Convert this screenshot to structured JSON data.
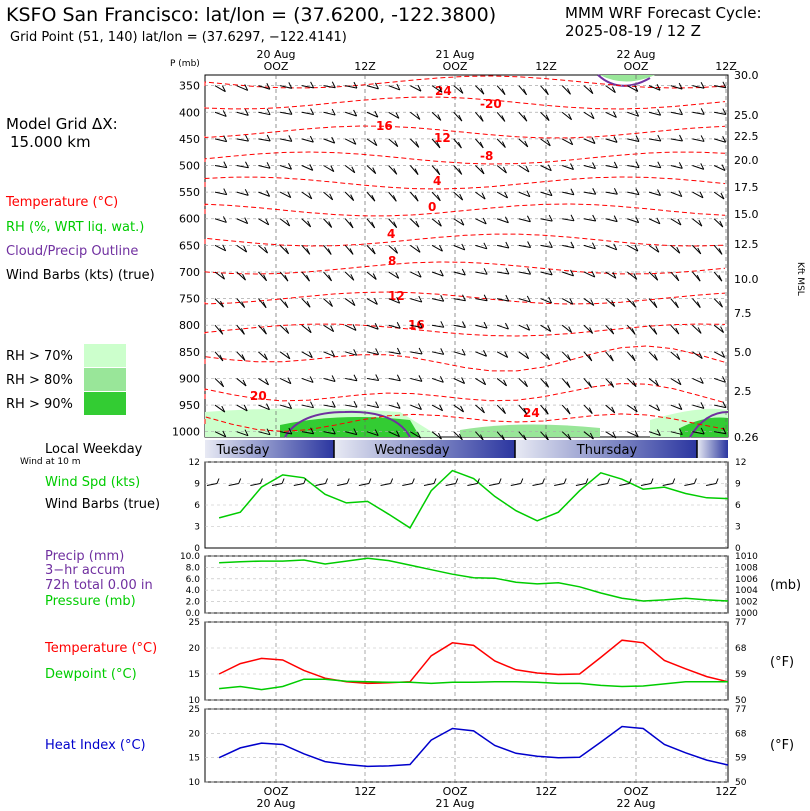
{
  "header": {
    "title": "KSFO San Francisco:  lat/lon = (37.6200, -122.3800)",
    "subtitle": "Grid Point (51, 140) lat/lon = (37.6297, −122.4141)",
    "cycle_line1": "MMM WRF Forecast Cycle:",
    "cycle_line2": "2025-08-19 / 12  Z",
    "grid_label": "Model Grid ΔX:",
    "grid_value": "15.000 km"
  },
  "legend": {
    "temperature": "Temperature (°C)",
    "rh": "RH (%, WRT liq. wat.)",
    "cloud": "Cloud/Precip Outline",
    "wind": "Wind Barbs (kts) (true)",
    "rh70": "RH > 70%",
    "rh80": "RH > 80%",
    "rh90": "RH > 90%"
  },
  "colors": {
    "temperature": "#ff0000",
    "rh": "#00cc00",
    "cloud": "#7030a0",
    "rh70": "#ccffcc",
    "rh80": "#99e699",
    "rh90": "#33cc33",
    "heat_index": "#0000cc",
    "pressure": "#00cc00"
  },
  "time_axis": {
    "top_dates": [
      "20 Aug",
      "21 Aug",
      "22 Aug"
    ],
    "top_times": [
      "OOZ",
      "12Z",
      "OOZ",
      "12Z",
      "OOZ",
      "12Z"
    ],
    "bottom_times": [
      "OOZ",
      "12Z",
      "OOZ",
      "12Z",
      "OOZ",
      "12Z"
    ],
    "bottom_dates": [
      "20 Aug",
      "21 Aug",
      "22 Aug"
    ],
    "weekdays": [
      "Tuesday",
      "Wednesday",
      "Thursday"
    ],
    "local_weekday_label": "Local Weekday",
    "wind_10m_label": "Wind at 10 m"
  },
  "chart_data": [
    {
      "type": "line",
      "title": "",
      "panel": "sounding",
      "ylabel": "P (mb)",
      "y_right_label": "Kft MSL",
      "pressure_ticks": [
        350,
        400,
        450,
        500,
        550,
        600,
        650,
        700,
        750,
        800,
        850,
        900,
        950,
        1000
      ],
      "height_ticks": [
        "30.0",
        "25.0",
        "22.5",
        "20.0",
        "17.5",
        "15.0",
        "12.5",
        "10.0",
        "7.5",
        "5.0",
        "2.5",
        "0.26"
      ],
      "isotherm_labels": [
        "24",
        "-20",
        "16",
        "12",
        "-8",
        "4",
        "0",
        "4",
        "8",
        "12",
        "16",
        "20",
        "24"
      ]
    },
    {
      "type": "line",
      "panel": "wind",
      "legend": [
        "Wind Spd (kts)",
        "Wind Barbs (true)"
      ],
      "y_ticks": [
        3,
        6,
        9,
        12
      ],
      "ylim": [
        0,
        12
      ],
      "x_hours": [
        0,
        3,
        6,
        9,
        12,
        15,
        18,
        21,
        24,
        27,
        30,
        33,
        36,
        39,
        42,
        45,
        48,
        51,
        54,
        57,
        60,
        63,
        66,
        69,
        72
      ],
      "series": [
        {
          "name": "Wind Spd (kts)",
          "values": [
            4.2,
            5,
            8.5,
            10.2,
            9.8,
            7.5,
            6.3,
            6.5,
            4.7,
            2.8,
            8,
            10.8,
            9.7,
            7.2,
            5.2,
            3.8,
            5,
            8,
            10.5,
            9.6,
            8.2,
            8.5,
            7.6,
            7,
            6.9
          ]
        }
      ]
    },
    {
      "type": "line",
      "panel": "precip-pressure",
      "legend": [
        "Precip (mm)",
        "3−hr accum",
        "72h total 0.00 in",
        "Pressure (mb)"
      ],
      "y_left_ticks": [
        "0.0",
        "2.0",
        "4.0",
        "6.0",
        "8.0",
        "10.0"
      ],
      "y_right_ticks": [
        1000,
        1002,
        1004,
        1006,
        1008,
        1010
      ],
      "y_right_unit": "(mb)",
      "ylim_right": [
        1000,
        1010
      ],
      "x_hours": [
        0,
        3,
        6,
        9,
        12,
        15,
        18,
        21,
        24,
        27,
        30,
        33,
        36,
        39,
        42,
        45,
        48,
        51,
        54,
        57,
        60,
        63,
        66,
        69,
        72
      ],
      "series": [
        {
          "name": "Pressure (mb)",
          "values": [
            1008.8,
            1009,
            1009.1,
            1009.1,
            1009.3,
            1008.6,
            1009.1,
            1009.6,
            1009.2,
            1008.4,
            1007.6,
            1006.8,
            1006.2,
            1006.1,
            1005.4,
            1005.1,
            1005.3,
            1004.6,
            1003.5,
            1002.6,
            1002.1,
            1002.3,
            1002.6,
            1002.3,
            1002.1
          ]
        }
      ]
    },
    {
      "type": "line",
      "panel": "temperature",
      "legend": [
        "Temperature (°C)",
        "Dewpoint (°C)"
      ],
      "y_left_ticks": [
        10,
        15,
        20,
        25
      ],
      "y_right_ticks": [
        50,
        59,
        68,
        77
      ],
      "y_right_unit": "(°F)",
      "ylim": [
        10,
        25
      ],
      "x_hours": [
        0,
        3,
        6,
        9,
        12,
        15,
        18,
        21,
        24,
        27,
        30,
        33,
        36,
        39,
        42,
        45,
        48,
        51,
        54,
        57,
        60,
        63,
        66,
        69,
        72
      ],
      "series": [
        {
          "name": "Temperature (°C)",
          "values": [
            15,
            17,
            18,
            17.7,
            15.7,
            14.2,
            13.5,
            13.2,
            13.3,
            13.5,
            18.5,
            21,
            20.5,
            17.5,
            15.8,
            15.2,
            14.9,
            15,
            18.2,
            21.5,
            21,
            17.6,
            16,
            14.5,
            13.5
          ]
        },
        {
          "name": "Dewpoint (°C)",
          "values": [
            12.2,
            12.6,
            12,
            12.6,
            14,
            14,
            13.6,
            13.5,
            13.4,
            13.4,
            13.2,
            13.4,
            13.4,
            13.5,
            13.5,
            13.4,
            13.2,
            13.2,
            12.8,
            12.6,
            12.7,
            13.1,
            13.5,
            13.5,
            13.5
          ]
        }
      ]
    },
    {
      "type": "line",
      "panel": "heat-index",
      "legend": [
        "Heat Index (°C)"
      ],
      "y_left_ticks": [
        10,
        15,
        20,
        25
      ],
      "y_right_ticks": [
        50,
        59,
        68,
        77
      ],
      "y_right_unit": "(°F)",
      "ylim": [
        10,
        25
      ],
      "x_hours": [
        0,
        3,
        6,
        9,
        12,
        15,
        18,
        21,
        24,
        27,
        30,
        33,
        36,
        39,
        42,
        45,
        48,
        51,
        54,
        57,
        60,
        63,
        66,
        69,
        72
      ],
      "series": [
        {
          "name": "Heat Index (°C)",
          "values": [
            15,
            17,
            18,
            17.7,
            15.8,
            14.2,
            13.6,
            13.2,
            13.3,
            13.6,
            18.6,
            21,
            20.5,
            17.5,
            15.9,
            15.3,
            15,
            15.1,
            18.2,
            21.4,
            21,
            17.7,
            16,
            14.5,
            13.5
          ]
        }
      ]
    }
  ]
}
